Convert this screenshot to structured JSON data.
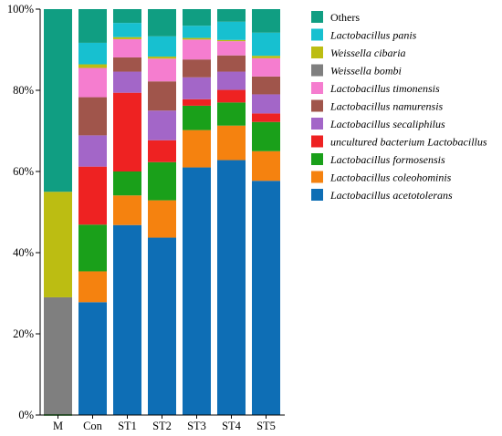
{
  "chart_data": {
    "type": "bar",
    "stacked": true,
    "percent_axis": true,
    "categories": [
      "M",
      "Con",
      "ST1",
      "ST2",
      "ST3",
      "ST4",
      "ST5"
    ],
    "y_ticks": [
      "0%",
      "20%",
      "40%",
      "60%",
      "80%",
      "100%"
    ],
    "ylim": [
      0,
      100
    ],
    "legend_position": "right",
    "series": [
      {
        "name": "Lactobacillus acetotolerans",
        "color": "#0E6EB5",
        "values": [
          0,
          27.8,
          46.8,
          43.7,
          61.0,
          62.8,
          57.7
        ]
      },
      {
        "name": "Lactobacillus coleohominis",
        "color": "#F5820F",
        "values": [
          0,
          7.6,
          7.3,
          9.2,
          9.2,
          8.5,
          7.3
        ]
      },
      {
        "name": "Lactobacillus formosensis",
        "color": "#1AA01A",
        "values": [
          0,
          11.5,
          5.9,
          9.4,
          6.0,
          5.7,
          7.2
        ]
      },
      {
        "name": "uncultured bacterium Lactobacillus",
        "color": "#EE2222",
        "values": [
          0,
          14.3,
          19.4,
          5.4,
          1.6,
          3.1,
          2.1
        ]
      },
      {
        "name": "Lactobacillus secaliphilus",
        "color": "#A366C8",
        "values": [
          0,
          7.7,
          5.2,
          7.3,
          5.4,
          4.5,
          4.7
        ]
      },
      {
        "name": "Lactobacillus namurensis",
        "color": "#A0554B",
        "values": [
          0,
          9.4,
          3.5,
          7.2,
          4.4,
          4.0,
          4.4
        ]
      },
      {
        "name": "Lactobacillus timonensis",
        "color": "#F57DCF",
        "values": [
          0,
          7.2,
          4.5,
          5.6,
          4.9,
          3.5,
          4.5
        ]
      },
      {
        "name": "Weissella bombi",
        "color": "#7F7F7F",
        "values": [
          29.0,
          0,
          0,
          0,
          0,
          0,
          0
        ]
      },
      {
        "name": "Weissella cibaria",
        "color": "#BCBD12",
        "values": [
          26.0,
          0.9,
          0.5,
          0.5,
          0.4,
          0.3,
          0.6
        ]
      },
      {
        "name": "Lactobacillus panis",
        "color": "#17C0D0",
        "values": [
          0,
          5.3,
          3.5,
          5.0,
          3.0,
          4.5,
          5.7
        ]
      },
      {
        "name": "Others",
        "color": "#109E82",
        "values": [
          45.0,
          8.3,
          3.4,
          6.7,
          4.1,
          3.1,
          5.8
        ]
      }
    ],
    "legend_order": [
      "Others",
      "Lactobacillus panis",
      "Weissella cibaria",
      "Weissella bombi",
      "Lactobacillus timonensis",
      "Lactobacillus namurensis",
      "Lactobacillus secaliphilus",
      "uncultured bacterium Lactobacillus",
      "Lactobacillus formosensis",
      "Lactobacillus coleohominis",
      "Lactobacillus acetotolerans"
    ],
    "legend_italic": {
      "Others": false,
      "Lactobacillus panis": true,
      "Weissella cibaria": true,
      "Weissella bombi": true,
      "Lactobacillus timonensis": true,
      "Lactobacillus namurensis": true,
      "Lactobacillus secaliphilus": true,
      "uncultured bacterium Lactobacillus": true,
      "Lactobacillus formosensis": true,
      "Lactobacillus coleohominis": true,
      "Lactobacillus acetotolerans": true
    }
  }
}
